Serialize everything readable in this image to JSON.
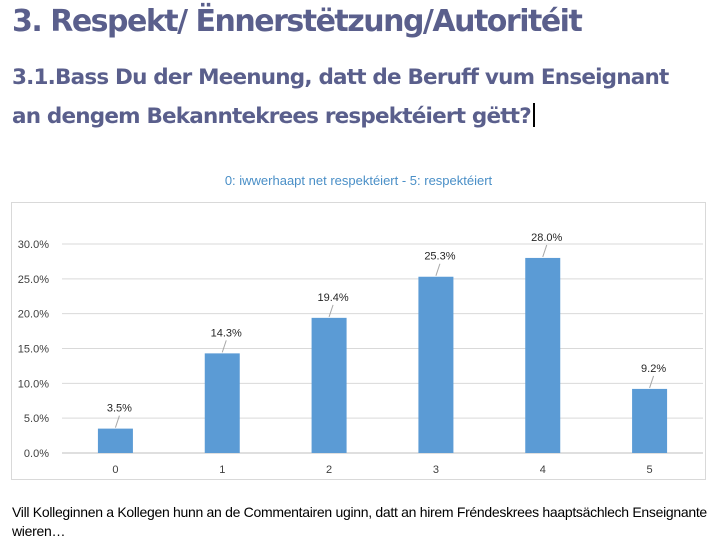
{
  "header": {
    "title": "3. Respekt/ Ënnerstëtzung/Autoritéit",
    "question": "3.1.Bass Du der Meenung, datt de Beruff vum Enseignant an dengem Bekanntekrees respektéiert gëtt?"
  },
  "chart_data": {
    "type": "bar",
    "title": "0: iwwerhaapt net respektéiert - 5: respektéiert",
    "categories": [
      "0",
      "1",
      "2",
      "3",
      "4",
      "5"
    ],
    "values": [
      3.5,
      14.3,
      19.4,
      25.3,
      28.0,
      9.2
    ],
    "data_labels": [
      "3.5%",
      "14.3%",
      "19.4%",
      "25.3%",
      "28.0%",
      "9.2%"
    ],
    "y_ticks": [
      "0.0%",
      "5.0%",
      "10.0%",
      "15.0%",
      "20.0%",
      "25.0%",
      "30.0%"
    ],
    "ylim": [
      0,
      30
    ],
    "grid": true,
    "colors": {
      "bar": "#5b9bd5",
      "grid": "#d9d9d9",
      "title": "#4a8fc7"
    }
  },
  "footer": {
    "note": "Vill Kolleginnen a Kollegen hunn an de Commentairen uginn, datt an hirem Fréndeskrees haaptsächlech Enseignante wieren…"
  }
}
